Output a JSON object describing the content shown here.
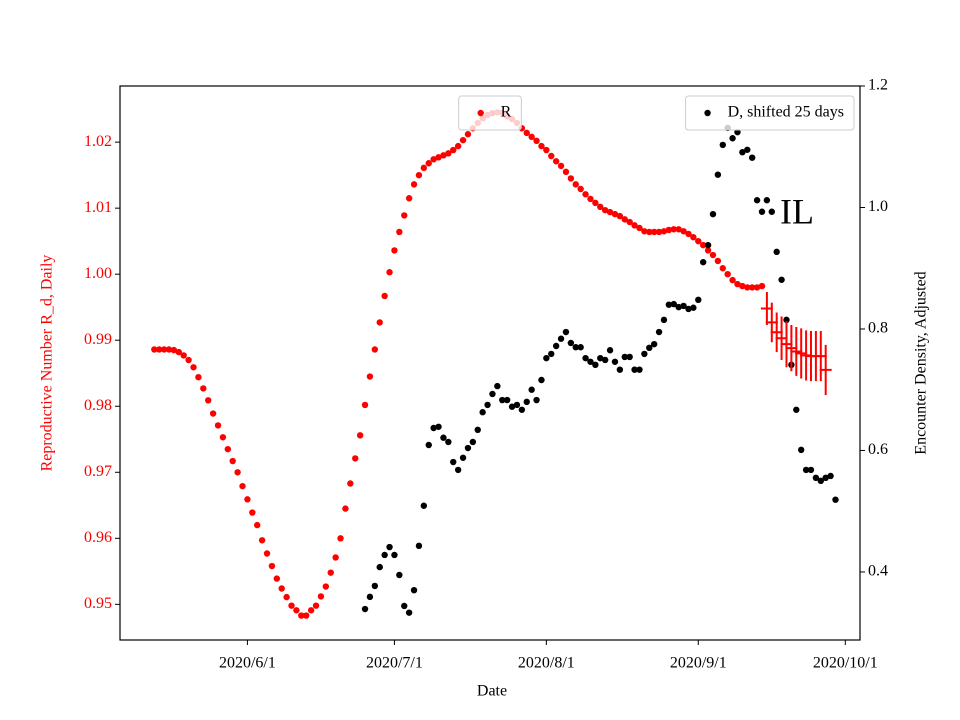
{
  "chart_data": {
    "type": "scatter",
    "annotation": "IL",
    "x_label": "Date",
    "y_label": "Reproductive Number R_d, Daily",
    "y2_label": "Encounter Density, Adjusted",
    "xlim": [
      "2020-05-06",
      "2020-10-04"
    ],
    "xticks": [
      {
        "value": "2020-06-01",
        "label": "2020/6/1"
      },
      {
        "value": "2020-07-01",
        "label": "2020/7/1"
      },
      {
        "value": "2020-08-01",
        "label": "2020/8/1"
      },
      {
        "value": "2020-09-01",
        "label": "2020/9/1"
      },
      {
        "value": "2020-10-01",
        "label": "2020/10/1"
      }
    ],
    "ylim": [
      0.9446,
      1.0285
    ],
    "yticks": [
      0.95,
      0.96,
      0.97,
      0.98,
      0.99,
      {
        "value": 1,
        "label": "1.00"
      },
      1.01,
      1.02
    ],
    "y2lim": [
      0.288,
      1.2
    ],
    "y2ticks": [
      0.4,
      0.6,
      0.8,
      {
        "value": 1,
        "label": "1.0"
      },
      1.2
    ],
    "series": [
      {
        "name": "R",
        "color": "#ff0000",
        "legend": "upper center",
        "x": [
          "2020-05-13",
          "2020-05-14",
          "2020-05-15",
          "2020-05-16",
          "2020-05-17",
          "2020-05-18",
          "2020-05-19",
          "2020-05-20",
          "2020-05-21",
          "2020-05-22",
          "2020-05-23",
          "2020-05-24",
          "2020-05-25",
          "2020-05-26",
          "2020-05-27",
          "2020-05-28",
          "2020-05-29",
          "2020-05-30",
          "2020-05-31",
          "2020-06-01",
          "2020-06-02",
          "2020-06-03",
          "2020-06-04",
          "2020-06-05",
          "2020-06-06",
          "2020-06-07",
          "2020-06-08",
          "2020-06-09",
          "2020-06-10",
          "2020-06-11",
          "2020-06-12",
          "2020-06-13",
          "2020-06-14",
          "2020-06-15",
          "2020-06-16",
          "2020-06-17",
          "2020-06-18",
          "2020-06-19",
          "2020-06-20",
          "2020-06-21",
          "2020-06-22",
          "2020-06-23",
          "2020-06-24",
          "2020-06-25",
          "2020-06-26",
          "2020-06-27",
          "2020-06-28",
          "2020-06-29",
          "2020-06-30",
          "2020-07-01",
          "2020-07-02",
          "2020-07-03",
          "2020-07-04",
          "2020-07-05",
          "2020-07-06",
          "2020-07-07",
          "2020-07-08",
          "2020-07-09",
          "2020-07-10",
          "2020-07-11",
          "2020-07-12",
          "2020-07-13",
          "2020-07-14",
          "2020-07-15",
          "2020-07-16",
          "2020-07-17",
          "2020-07-18",
          "2020-07-19",
          "2020-07-20",
          "2020-07-21",
          "2020-07-22",
          "2020-07-23",
          "2020-07-24",
          "2020-07-25",
          "2020-07-26",
          "2020-07-27",
          "2020-07-28",
          "2020-07-29",
          "2020-07-30",
          "2020-07-31",
          "2020-08-01",
          "2020-08-02",
          "2020-08-03",
          "2020-08-04",
          "2020-08-05",
          "2020-08-06",
          "2020-08-07",
          "2020-08-08",
          "2020-08-09",
          "2020-08-10",
          "2020-08-11",
          "2020-08-12",
          "2020-08-13",
          "2020-08-14",
          "2020-08-15",
          "2020-08-16",
          "2020-08-17",
          "2020-08-18",
          "2020-08-19",
          "2020-08-20",
          "2020-08-21",
          "2020-08-22",
          "2020-08-23",
          "2020-08-24",
          "2020-08-25",
          "2020-08-26",
          "2020-08-27",
          "2020-08-28",
          "2020-08-29",
          "2020-08-30",
          "2020-08-31",
          "2020-09-01",
          "2020-09-02",
          "2020-09-03",
          "2020-09-04",
          "2020-09-05",
          "2020-09-06",
          "2020-09-07",
          "2020-09-08",
          "2020-09-09",
          "2020-09-10",
          "2020-09-11",
          "2020-09-12",
          "2020-09-13",
          "2020-09-14"
        ],
        "values": [
          0.9886,
          0.9886,
          0.9886,
          0.9886,
          0.9885,
          0.9882,
          0.9877,
          0.987,
          0.9859,
          0.9844,
          0.9827,
          0.9809,
          0.9789,
          0.9771,
          0.9753,
          0.9735,
          0.9717,
          0.97,
          0.9679,
          0.9659,
          0.9639,
          0.962,
          0.9597,
          0.9577,
          0.9558,
          0.9539,
          0.9524,
          0.9511,
          0.9498,
          0.9491,
          0.9483,
          0.9483,
          0.9491,
          0.9498,
          0.9512,
          0.9527,
          0.9548,
          0.9571,
          0.96,
          0.9645,
          0.9683,
          0.9721,
          0.9756,
          0.9802,
          0.9845,
          0.9886,
          0.9927,
          0.9967,
          1.0003,
          1.0036,
          1.0064,
          1.0089,
          1.0115,
          1.0136,
          1.015,
          1.0161,
          1.0168,
          1.0174,
          1.0177,
          1.018,
          1.0183,
          1.0188,
          1.0194,
          1.0203,
          1.0212,
          1.0221,
          1.0229,
          1.0236,
          1.0241,
          1.0244,
          1.0245,
          1.0244,
          1.0239,
          1.0235,
          1.0229,
          1.0221,
          1.0214,
          1.0208,
          1.0202,
          1.0194,
          1.0188,
          1.0179,
          1.0171,
          1.0164,
          1.0155,
          1.0145,
          1.0136,
          1.0129,
          1.0121,
          1.0114,
          1.0108,
          1.0102,
          1.0097,
          1.0094,
          1.0091,
          1.0088,
          1.0083,
          1.0079,
          1.0074,
          1.007,
          1.0065,
          1.0064,
          1.0064,
          1.0064,
          1.0065,
          1.0067,
          1.0068,
          1.0068,
          1.0065,
          1.0061,
          1.0056,
          1.005,
          1.0044,
          1.0036,
          1.0029,
          1.002,
          1.0009,
          1.0,
          0.9991,
          0.9985,
          0.9982,
          0.998,
          0.998,
          0.998,
          0.9982
        ]
      },
      {
        "name": "D, shifted 25 days",
        "color": "#000000",
        "axis": "y2",
        "legend": "upper right",
        "x": [
          "2020-06-25",
          "2020-06-26",
          "2020-06-27",
          "2020-06-28",
          "2020-06-29",
          "2020-06-30",
          "2020-07-01",
          "2020-07-02",
          "2020-07-03",
          "2020-07-04",
          "2020-07-05",
          "2020-07-06",
          "2020-07-07",
          "2020-07-08",
          "2020-07-09",
          "2020-07-10",
          "2020-07-11",
          "2020-07-12",
          "2020-07-13",
          "2020-07-14",
          "2020-07-15",
          "2020-07-16",
          "2020-07-17",
          "2020-07-18",
          "2020-07-19",
          "2020-07-20",
          "2020-07-21",
          "2020-07-22",
          "2020-07-23",
          "2020-07-24",
          "2020-07-25",
          "2020-07-26",
          "2020-07-27",
          "2020-07-28",
          "2020-07-29",
          "2020-07-30",
          "2020-07-31",
          "2020-08-01",
          "2020-08-02",
          "2020-08-03",
          "2020-08-04",
          "2020-08-05",
          "2020-08-06",
          "2020-08-07",
          "2020-08-08",
          "2020-08-09",
          "2020-08-10",
          "2020-08-11",
          "2020-08-12",
          "2020-08-13",
          "2020-08-14",
          "2020-08-15",
          "2020-08-16",
          "2020-08-17",
          "2020-08-18",
          "2020-08-19",
          "2020-08-20",
          "2020-08-21",
          "2020-08-22",
          "2020-08-23",
          "2020-08-24",
          "2020-08-25",
          "2020-08-26",
          "2020-08-27",
          "2020-08-28",
          "2020-08-29",
          "2020-08-30",
          "2020-08-31",
          "2020-09-01",
          "2020-09-02",
          "2020-09-03",
          "2020-09-04",
          "2020-09-05",
          "2020-09-06",
          "2020-09-07",
          "2020-09-08",
          "2020-09-09",
          "2020-09-10",
          "2020-09-11",
          "2020-09-12",
          "2020-09-13",
          "2020-09-14",
          "2020-09-15",
          "2020-09-16",
          "2020-09-17",
          "2020-09-18",
          "2020-09-19",
          "2020-09-20",
          "2020-09-21",
          "2020-09-22",
          "2020-09-23",
          "2020-09-24",
          "2020-09-25",
          "2020-09-26",
          "2020-09-27",
          "2020-09-28",
          "2020-09-29"
        ],
        "values": [
          0.339,
          0.359,
          0.377,
          0.408,
          0.428,
          0.441,
          0.428,
          0.395,
          0.344,
          0.333,
          0.37,
          0.443,
          0.509,
          0.609,
          0.637,
          0.639,
          0.621,
          0.614,
          0.581,
          0.568,
          0.588,
          0.604,
          0.614,
          0.634,
          0.663,
          0.675,
          0.693,
          0.706,
          0.683,
          0.683,
          0.672,
          0.675,
          0.667,
          0.68,
          0.7,
          0.683,
          0.716,
          0.752,
          0.759,
          0.772,
          0.784,
          0.795,
          0.777,
          0.77,
          0.77,
          0.752,
          0.746,
          0.741,
          0.752,
          0.749,
          0.765,
          0.746,
          0.733,
          0.754,
          0.754,
          0.733,
          0.733,
          0.759,
          0.769,
          0.775,
          0.795,
          0.815,
          0.84,
          0.841,
          0.836,
          0.838,
          0.833,
          0.835,
          0.848,
          0.91,
          0.938,
          0.989,
          1.054,
          1.103,
          1.131,
          1.114,
          1.124,
          1.091,
          1.095,
          1.082,
          1.012,
          0.993,
          1.012,
          0.993,
          0.927,
          0.881,
          0.815,
          0.741,
          0.667,
          0.601,
          0.568,
          0.568,
          0.555,
          0.55,
          0.555,
          0.558,
          0.519
        ]
      },
      {
        "color": "#ff0000",
        "x": [
          "2020-09-15",
          "2020-09-16",
          "2020-09-17",
          "2020-09-18",
          "2020-09-19",
          "2020-09-20",
          "2020-09-21",
          "2020-09-22",
          "2020-09-23",
          "2020-09-24",
          "2020-09-25",
          "2020-09-26",
          "2020-09-27"
        ],
        "values": [
          0.9948,
          0.9927,
          0.9912,
          0.9903,
          0.9894,
          0.9888,
          0.9883,
          0.988,
          0.9877,
          0.9876,
          0.9876,
          0.9876,
          0.9855
        ],
        "errors": [
          0.0025,
          0.003,
          0.003,
          0.0033,
          0.0035,
          0.0035,
          0.0037,
          0.0038,
          0.0038,
          0.0038,
          0.0038,
          0.0038,
          0.0038
        ]
      }
    ]
  }
}
